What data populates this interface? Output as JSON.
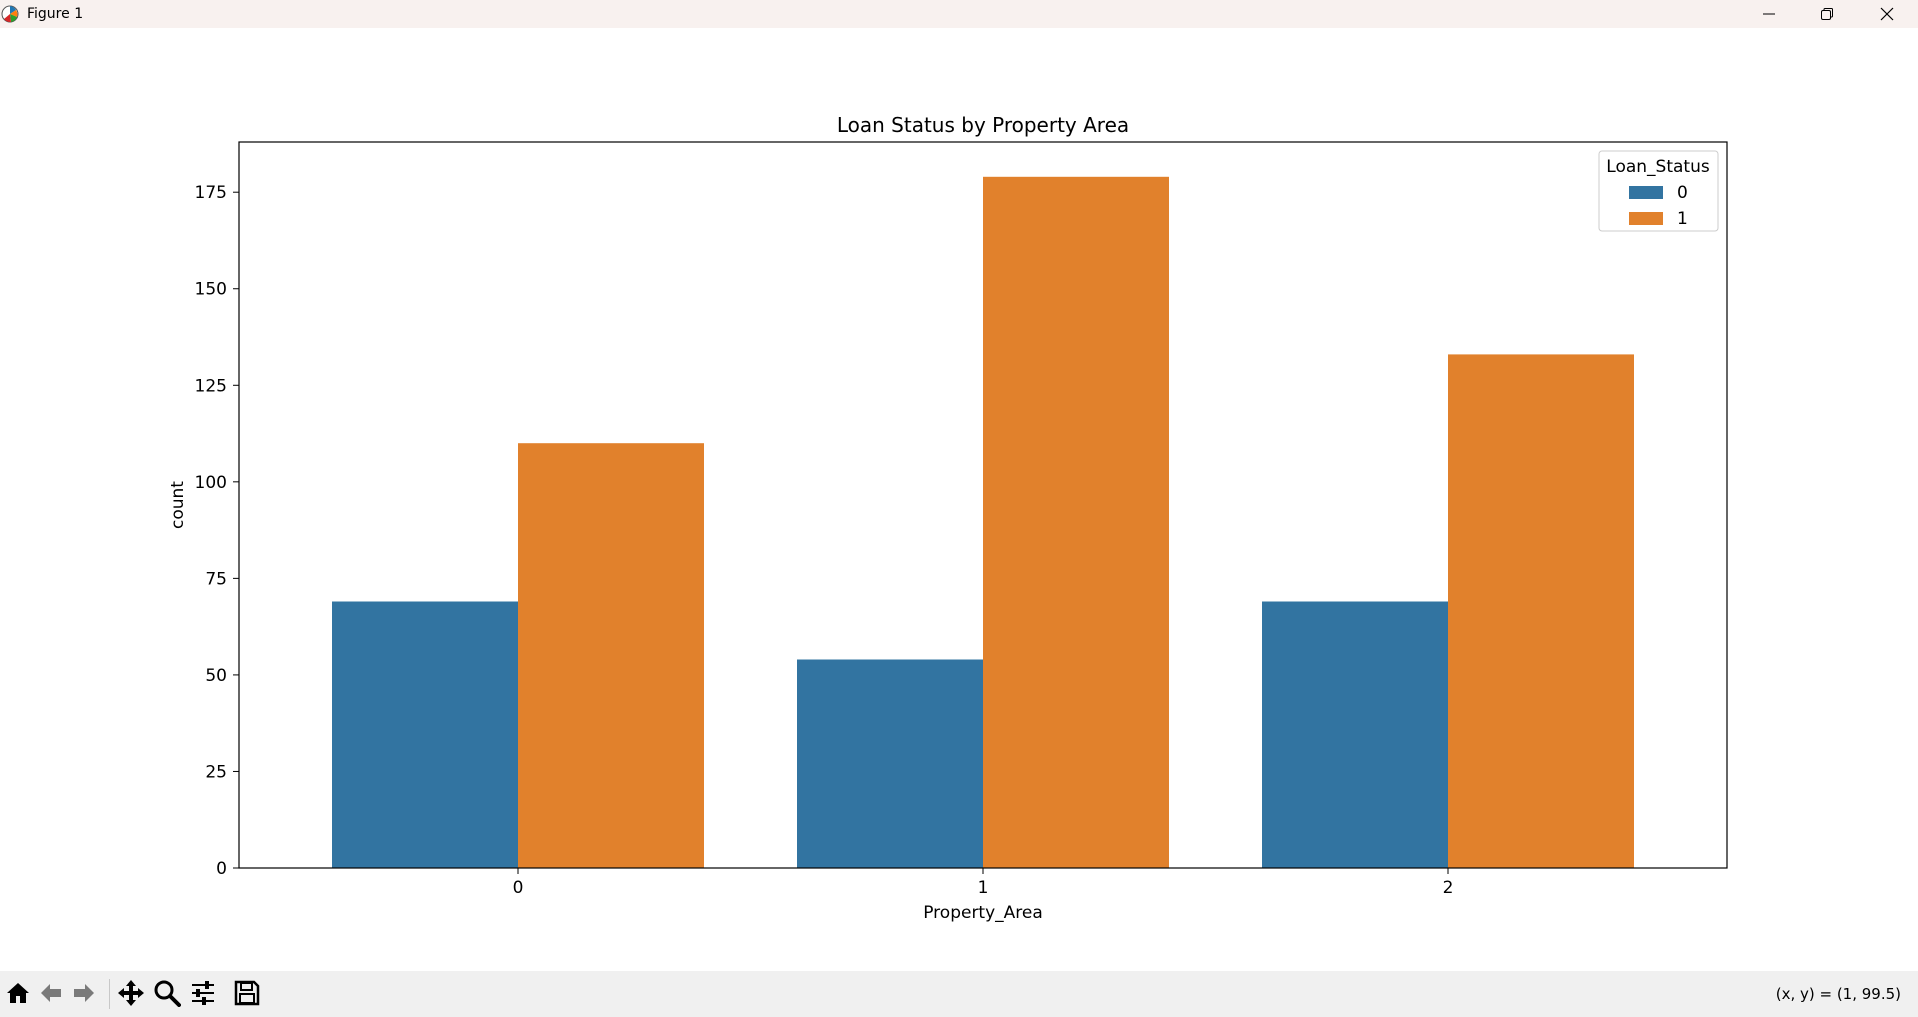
{
  "window": {
    "title": "Figure 1",
    "minimize_icon": "minimize-icon",
    "restore_icon": "restore-icon",
    "close_icon": "close-icon"
  },
  "toolbar": {
    "tools": [
      "home-icon",
      "back-arrow-icon",
      "forward-arrow-icon",
      "pan-icon",
      "zoom-icon",
      "configure-subplots-icon",
      "save-icon"
    ],
    "coords_text": "(x, y) = (1, 99.5)"
  },
  "colors": {
    "series_0": "#3274a1",
    "series_1": "#e1812c"
  },
  "chart_data": {
    "type": "bar",
    "title": "Loan Status by Property Area",
    "xlabel": "Property_Area",
    "ylabel": "count",
    "categories": [
      "0",
      "1",
      "2"
    ],
    "series": [
      {
        "name": "0",
        "values": [
          69,
          54,
          69
        ]
      },
      {
        "name": "1",
        "values": [
          110,
          179,
          133
        ]
      }
    ],
    "ylim": [
      0,
      188
    ],
    "yticks": [
      0,
      25,
      50,
      75,
      100,
      125,
      150,
      175
    ],
    "legend": {
      "title": "Loan_Status",
      "placement": "top-right"
    },
    "grid": false
  }
}
